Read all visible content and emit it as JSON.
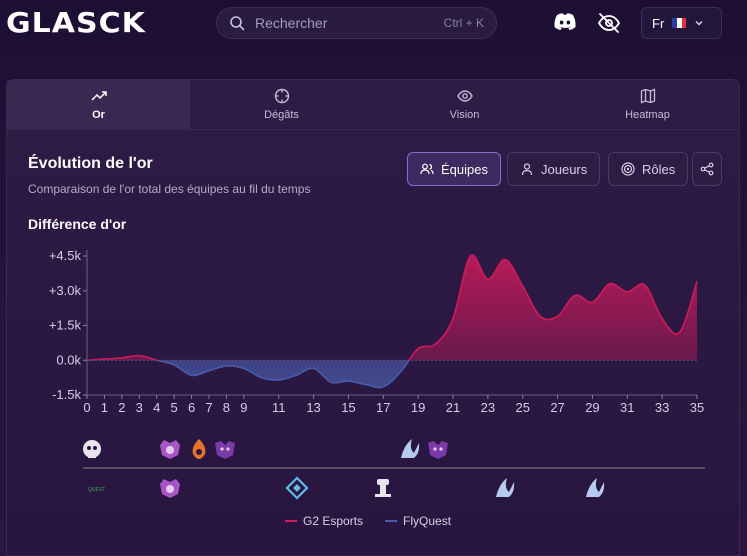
{
  "app": {
    "logo_text": "GLASCK"
  },
  "search": {
    "placeholder": "Rechercher",
    "shortcut": "Ctrl + K"
  },
  "language": {
    "code": "Fr"
  },
  "tabs": [
    {
      "label": "Or",
      "icon": "trending-up-icon",
      "active": true
    },
    {
      "label": "Dégâts",
      "icon": "crosshair-icon",
      "active": false
    },
    {
      "label": "Vision",
      "icon": "eye-icon",
      "active": false
    },
    {
      "label": "Heatmap",
      "icon": "map-icon",
      "active": false
    }
  ],
  "panel": {
    "title": "Évolution de l'or",
    "subtitle": "Comparaison de l'or total des équipes au fil du temps",
    "section_label": "Différence d'or",
    "buttons": {
      "teams": "Équipes",
      "players": "Joueurs",
      "roles": "Rôles"
    }
  },
  "colors": {
    "g2": "#d01a5c",
    "flyquest": "#4a5aa8",
    "accent": "#8a6ad0"
  },
  "chart_data": {
    "type": "area",
    "ylabel": "",
    "yticks": [
      "+4.5k",
      "+3.0k",
      "+1.5k",
      "0.0k",
      "-1.5k"
    ],
    "ylim": [
      -1500,
      4500
    ],
    "xlim": [
      0,
      35
    ],
    "xticks": [
      "0",
      "1",
      "2",
      "3",
      "4",
      "5",
      "6",
      "7",
      "8",
      "9",
      "11",
      "13",
      "15",
      "17",
      "19",
      "21",
      "23",
      "25",
      "27",
      "29",
      "31",
      "33",
      "35"
    ],
    "series": [
      {
        "name": "G2 Esports",
        "color": "#d01a5c"
      },
      {
        "name": "FlyQuest",
        "color": "#4a5aa8"
      }
    ],
    "x": [
      0,
      1,
      2,
      3,
      4,
      5,
      6,
      7,
      8,
      9,
      10,
      11,
      12,
      13,
      14,
      15,
      16,
      17,
      18,
      19,
      20,
      21,
      22,
      23,
      24,
      25,
      26,
      27,
      28,
      29,
      30,
      31,
      32,
      33,
      34,
      35
    ],
    "gold_diff": [
      0,
      50,
      100,
      200,
      0,
      -200,
      -650,
      -450,
      -250,
      -350,
      -750,
      -850,
      -650,
      -350,
      -950,
      -900,
      -1050,
      -1150,
      -500,
      500,
      700,
      1800,
      4500,
      3500,
      4350,
      3200,
      1900,
      1900,
      2800,
      2500,
      3300,
      2950,
      3250,
      1800,
      1200,
      3400
    ]
  },
  "timeline": {
    "g2_icons": [
      "kill-icon",
      "dragon-icon",
      "dragon-icon",
      "void-grub-icon",
      "void-grub-icon",
      "void-grub-icon",
      "baron-icon",
      "baron-icon"
    ],
    "fq_label": "QUEST"
  }
}
